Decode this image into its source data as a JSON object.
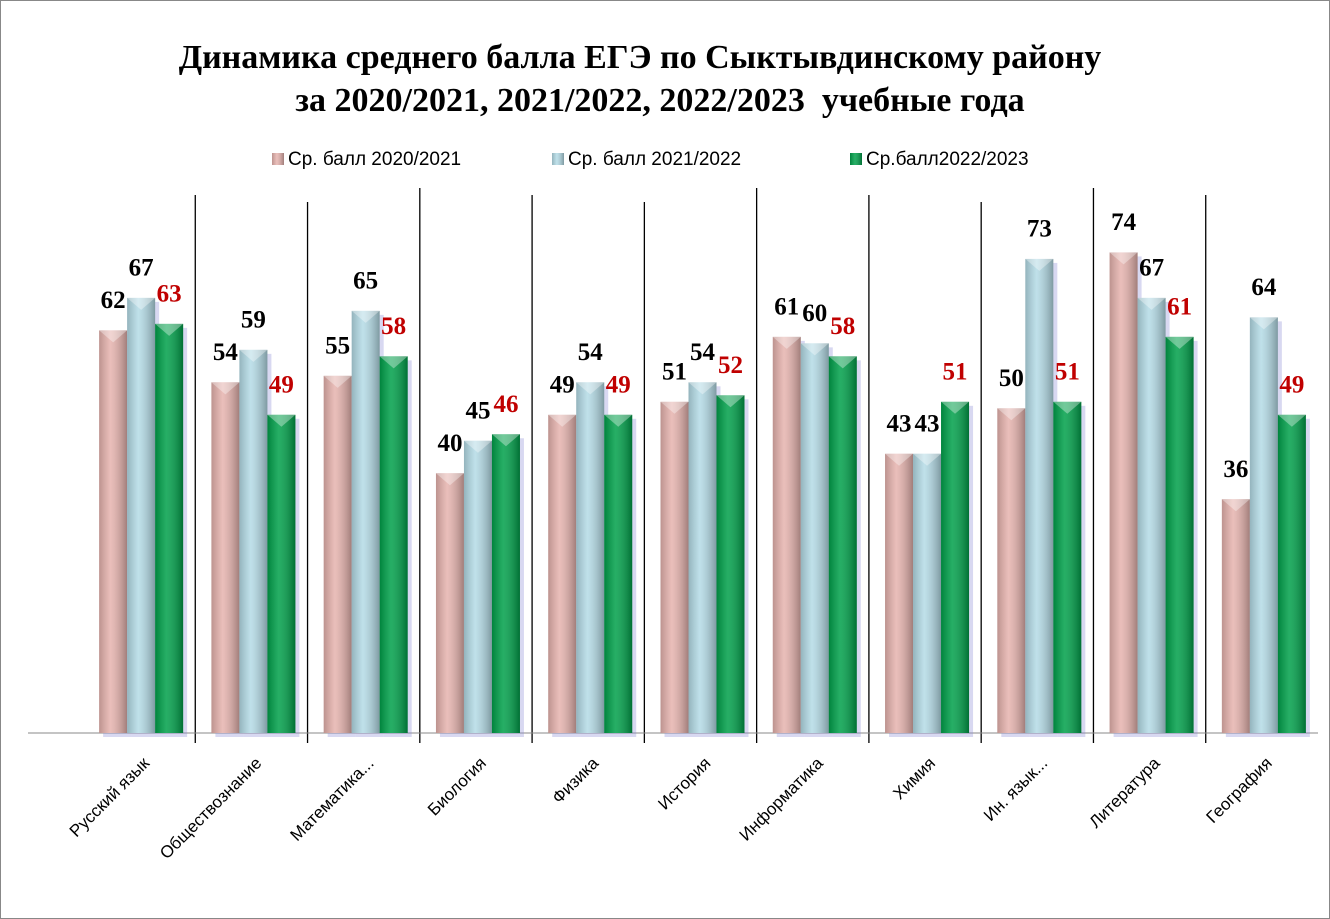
{
  "chart_data": {
    "type": "bar",
    "title": [
      "Динамика среднего балла ЕГЭ по Сыктывдинскому району",
      "за 2020/2021, 2021/2022, 2022/2023  учебные года"
    ],
    "categories": [
      "Русский язык",
      "Обществознание",
      "Математика...",
      "Биология",
      "Физика",
      "История",
      "Информатика",
      "Химия",
      "Ин. язык...",
      "Литература",
      "География"
    ],
    "series": [
      {
        "name": "Ср. балл 2020/2021",
        "color": "#e6b3ae",
        "label_color": "#000000",
        "values": [
          62,
          54,
          55,
          40,
          49,
          51,
          61,
          43,
          50,
          74,
          36
        ]
      },
      {
        "name": "Ср. балл 2021/2022",
        "color": "#b4dbe6",
        "label_color": "#000000",
        "values": [
          67,
          59,
          65,
          45,
          54,
          54,
          60,
          43,
          73,
          67,
          64
        ]
      },
      {
        "name": "Ср.балл2022/2023",
        "color": "#00a04a",
        "label_color": "#c00000",
        "values": [
          63,
          49,
          58,
          46,
          49,
          52,
          58,
          51,
          51,
          61,
          49
        ]
      }
    ],
    "ylim": [
      0,
      85
    ],
    "legend": "top"
  }
}
